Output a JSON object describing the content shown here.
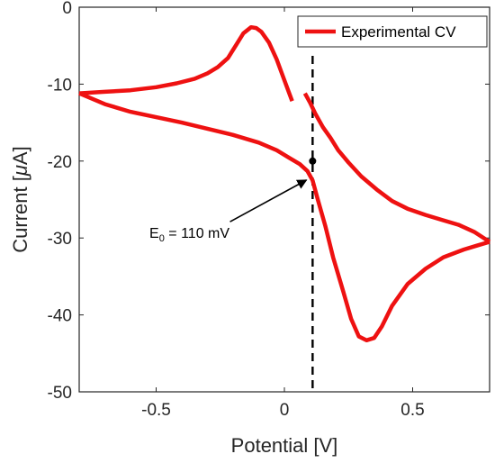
{
  "chart_data": {
    "type": "line",
    "xlabel": "Potential [V]",
    "ylabel_prefix": "Current [",
    "ylabel_mu": "μ",
    "ylabel_suffix": "A]",
    "xlim": [
      -0.8,
      0.8
    ],
    "ylim": [
      -50,
      0
    ],
    "xticks": [
      -0.5,
      0,
      0.5
    ],
    "xtick_labels": [
      "-0.5",
      "0",
      "0.5"
    ],
    "yticks": [
      0,
      -10,
      -20,
      -30,
      -40,
      -50
    ],
    "ytick_labels": [
      "0",
      "-10",
      "-20",
      "-30",
      "-40",
      "-50"
    ],
    "grid": false,
    "legend": {
      "position": "top-right",
      "entries": [
        "Experimental CV"
      ]
    },
    "series": [
      {
        "name": "Experimental CV",
        "color": "#ee1111",
        "segments": [
          {
            "x": [
              0.03,
              0.0,
              -0.03,
              -0.06,
              -0.09,
              -0.11,
              -0.13,
              -0.16,
              -0.19,
              -0.22,
              -0.26,
              -0.3,
              -0.35,
              -0.42,
              -0.5,
              -0.6,
              -0.7,
              -0.8
            ],
            "y": [
              -12.2,
              -9.5,
              -6.8,
              -4.6,
              -3.2,
              -2.7,
              -2.6,
              -3.4,
              -5.0,
              -6.6,
              -7.8,
              -8.6,
              -9.3,
              -9.9,
              -10.4,
              -10.8,
              -11.0,
              -11.2
            ]
          },
          {
            "x": [
              -0.8,
              -0.7,
              -0.6,
              -0.5,
              -0.4,
              -0.3,
              -0.2,
              -0.1,
              -0.03,
              0.02,
              0.06,
              0.09,
              0.11,
              0.13,
              0.16,
              0.19,
              0.23,
              0.26,
              0.29,
              0.32,
              0.35,
              0.38,
              0.42,
              0.48,
              0.55,
              0.62,
              0.7,
              0.75,
              0.8
            ],
            "y": [
              -11.2,
              -12.6,
              -13.6,
              -14.3,
              -15.0,
              -15.8,
              -16.6,
              -17.6,
              -18.6,
              -19.6,
              -20.4,
              -21.3,
              -22.5,
              -25.0,
              -28.5,
              -32.5,
              -37.0,
              -40.5,
              -42.8,
              -43.3,
              -43.0,
              -41.5,
              -38.8,
              -36.0,
              -34.0,
              -32.5,
              -31.5,
              -31.0,
              -30.5
            ]
          },
          {
            "x": [
              0.8,
              0.74,
              0.68,
              0.62,
              0.55,
              0.48,
              0.42,
              0.36,
              0.3,
              0.25,
              0.21,
              0.18,
              0.15,
              0.12,
              0.1,
              0.08
            ],
            "y": [
              -30.5,
              -29.2,
              -28.3,
              -27.7,
              -27.0,
              -26.2,
              -25.2,
              -23.7,
              -22.0,
              -20.2,
              -18.6,
              -17.0,
              -15.6,
              -13.8,
              -12.4,
              -11.2
            ]
          }
        ]
      }
    ],
    "reference_line": {
      "x": 0.11,
      "style": "dashed",
      "color": "#000000"
    },
    "marker_point": {
      "x": 0.11,
      "y": -20
    },
    "annotation": {
      "text_main": "E",
      "text_sub": "0",
      "text_rest": " = 110 mV",
      "text_x": -0.37,
      "text_y": -30,
      "arrow_to_x": 0.1,
      "arrow_to_y": -22
    }
  }
}
